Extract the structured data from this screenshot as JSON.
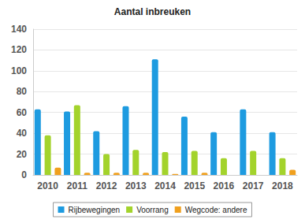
{
  "chart_data": {
    "type": "bar",
    "title": "Aantal inbreuken",
    "categories": [
      "2010",
      "2011",
      "2012",
      "2013",
      "2014",
      "2015",
      "2016",
      "2017",
      "2018"
    ],
    "series": [
      {
        "name": "Rijbewegingen",
        "color": "#1e9be0",
        "values": [
          63,
          61,
          42,
          66,
          111,
          56,
          41,
          63,
          41
        ]
      },
      {
        "name": "Voorrang",
        "color": "#a3d32c",
        "values": [
          38,
          67,
          20,
          24,
          22,
          23,
          16,
          23,
          16
        ]
      },
      {
        "name": "Wegcode: andere",
        "color": "#f0a01e",
        "values": [
          7,
          2,
          2,
          2,
          1,
          2,
          0,
          0,
          5
        ]
      }
    ],
    "ylim": [
      0,
      140
    ],
    "yticks": [
      0,
      20,
      40,
      60,
      80,
      100,
      120,
      140
    ],
    "grid": true,
    "legend": "bottom"
  }
}
